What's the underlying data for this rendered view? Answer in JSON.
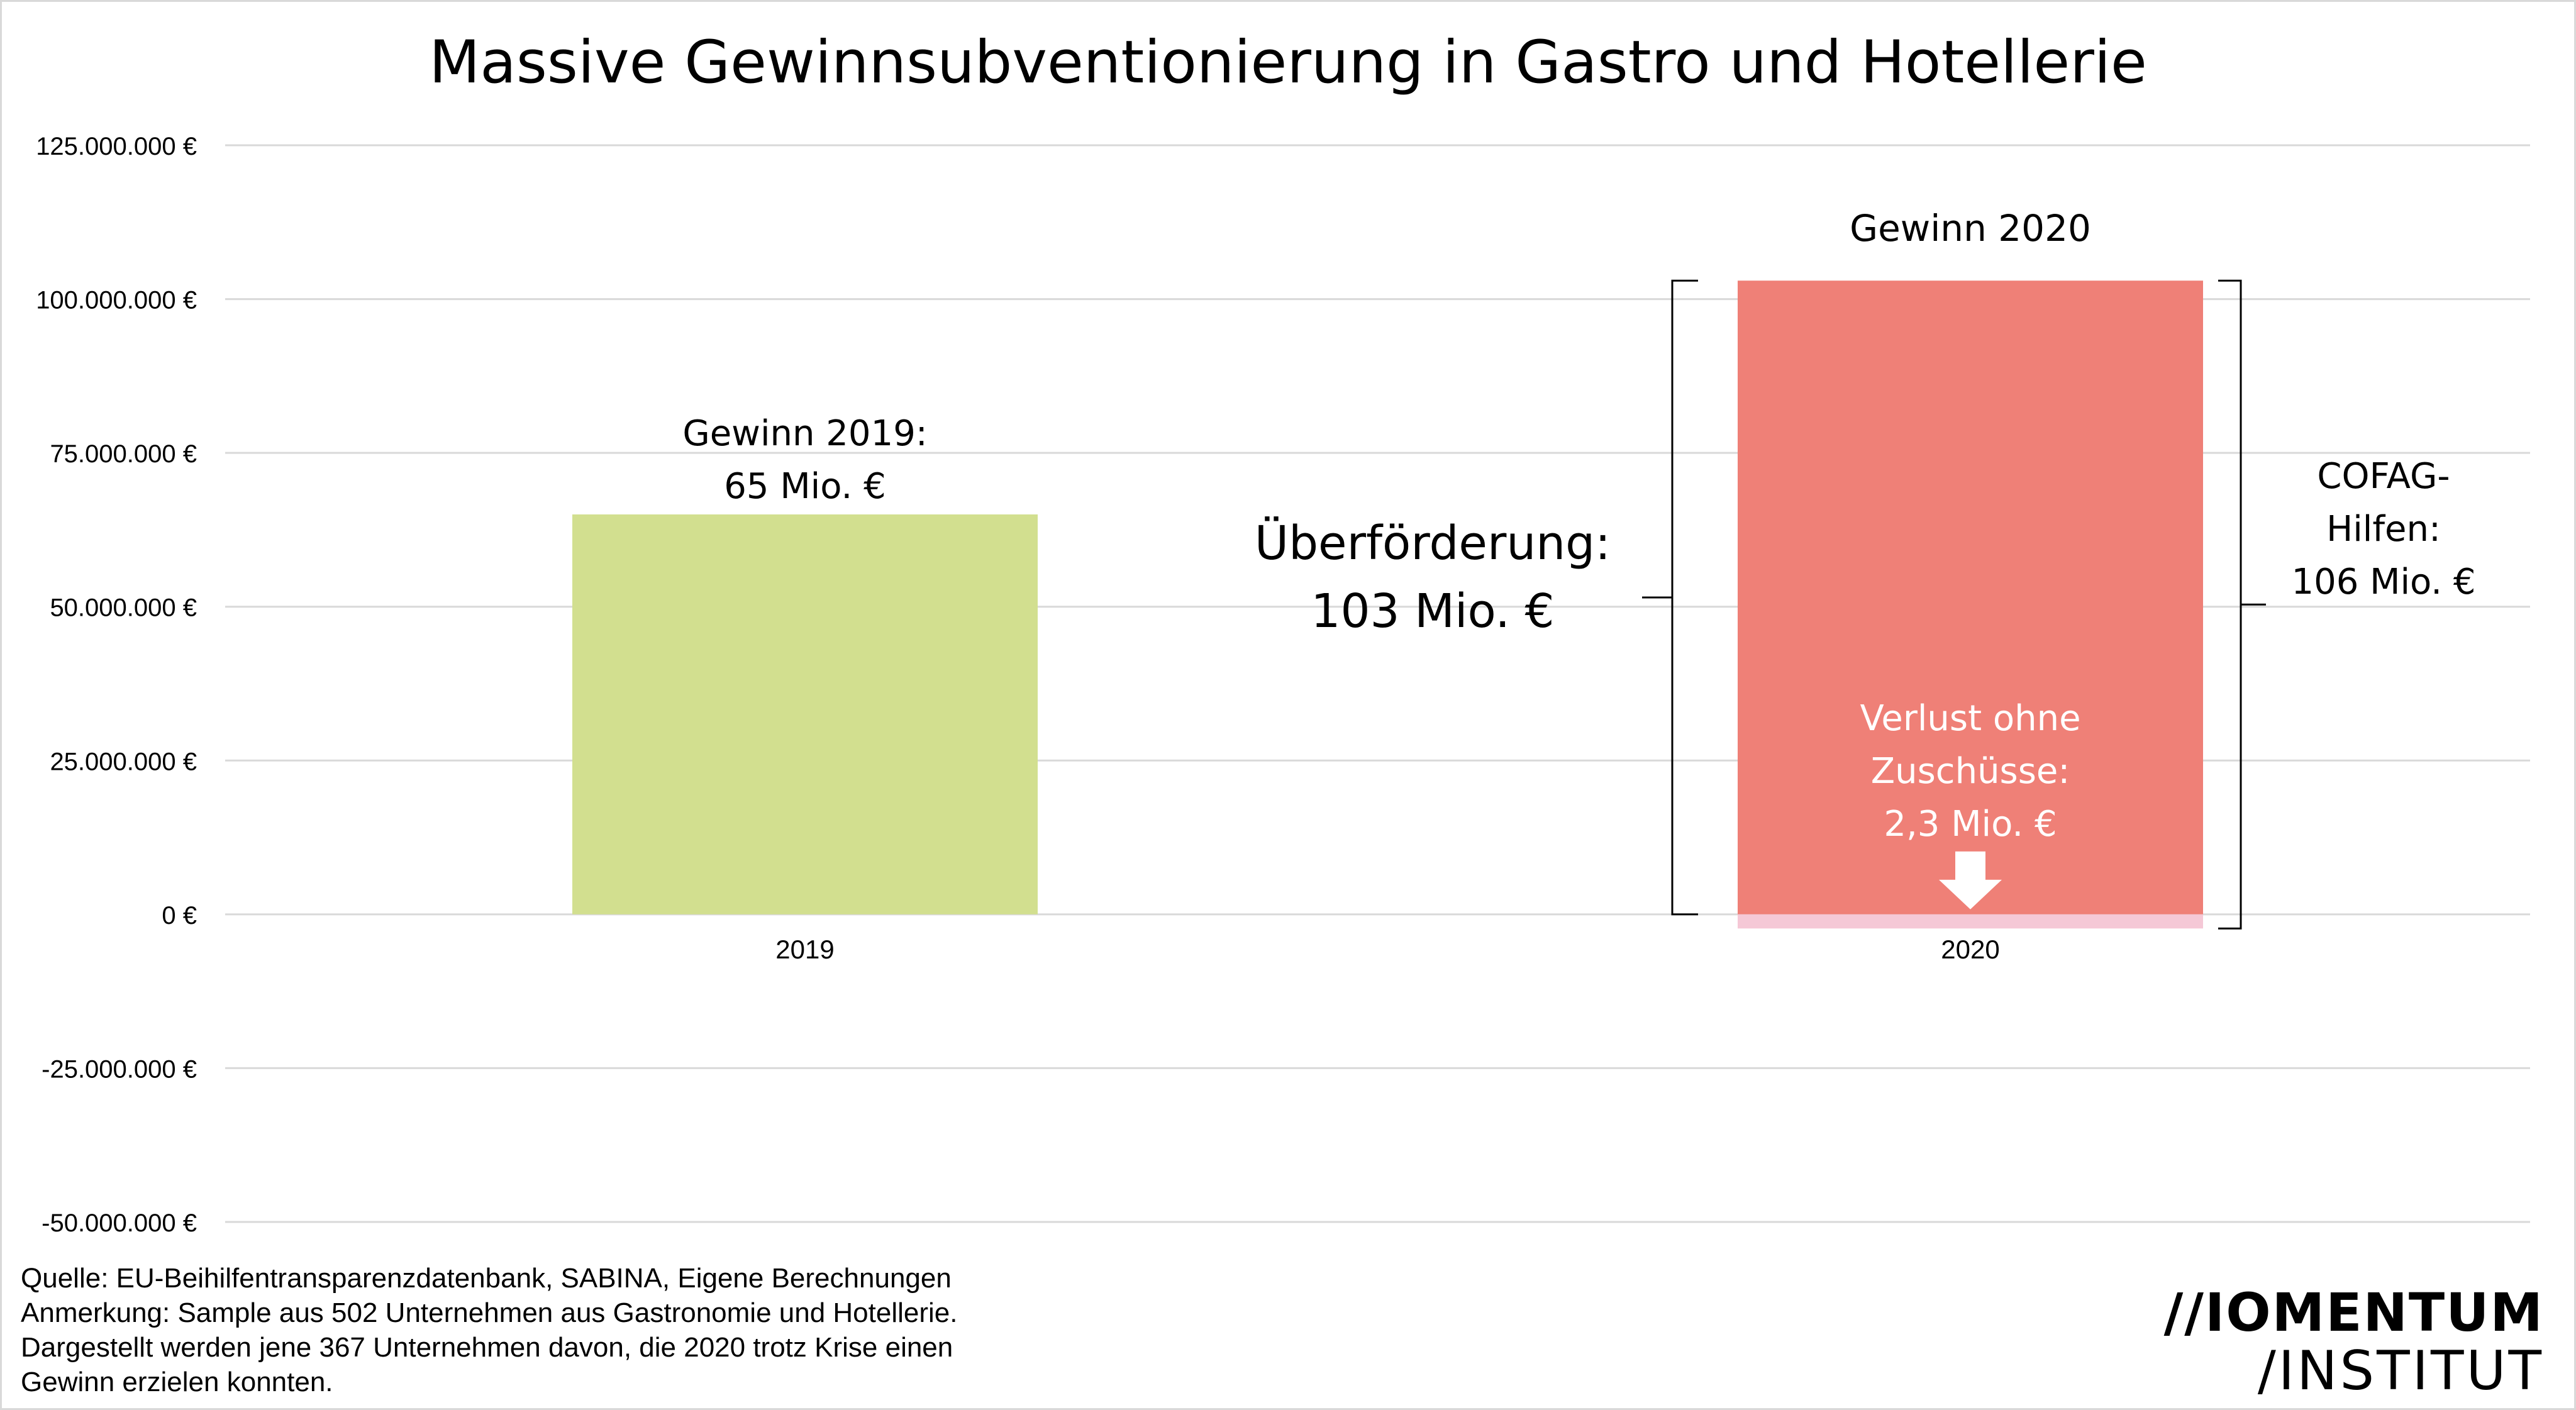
{
  "chart_data": {
    "type": "bar",
    "title": "Massive Gewinnsubventionierung in Gastro und Hotellerie",
    "categories": [
      "2019",
      "2020"
    ],
    "series": [
      {
        "values": [
          65000000,
          103000000
        ]
      },
      {
        "values": [
          0,
          -2300000
        ]
      }
    ],
    "colors": {
      "bar_2019": "#d2df8f",
      "bar_2020": "#ef8077",
      "loss_2020": "#f5c8d6",
      "grid": "#d9d9d9"
    },
    "ylim": [
      -50000000,
      125000000
    ],
    "yticks": [
      125000000,
      100000000,
      75000000,
      50000000,
      25000000,
      0,
      -25000000,
      -50000000
    ],
    "ytick_labels": [
      "125.000.000 €",
      "100.000.000 €",
      "75.000.000 €",
      "50.000.000 €",
      "25.000.000 €",
      "0 €",
      "-25.000.000 €",
      "-50.000.000 €"
    ],
    "grid": true,
    "annotations": {
      "gewinn_2019": [
        "Gewinn 2019:",
        "65 Mio. €"
      ],
      "gewinn_2020": "Gewinn 2020",
      "ueberfoerderung": [
        "Überförderung:",
        "103 Mio. €"
      ],
      "cofag": [
        "COFAG-",
        "Hilfen:",
        "106 Mio. €"
      ],
      "verlust": [
        "Verlust ohne",
        "Zuschüsse:",
        "2,3 Mio. €"
      ]
    }
  },
  "footer": {
    "lines": [
      "Quelle: EU-Beihilfentransparenzdatenbank, SABINA, Eigene Berechnungen",
      "Anmerkung: Sample aus 502 Unternehmen aus Gastronomie und Hotellerie.",
      "Dargestellt werden jene 367 Unternehmen davon, die 2020 trotz Krise einen",
      "Gewinn erzielen konnten."
    ]
  },
  "logo": {
    "line1": "//IOMENTUM",
    "line2": "/INSTITUT"
  }
}
